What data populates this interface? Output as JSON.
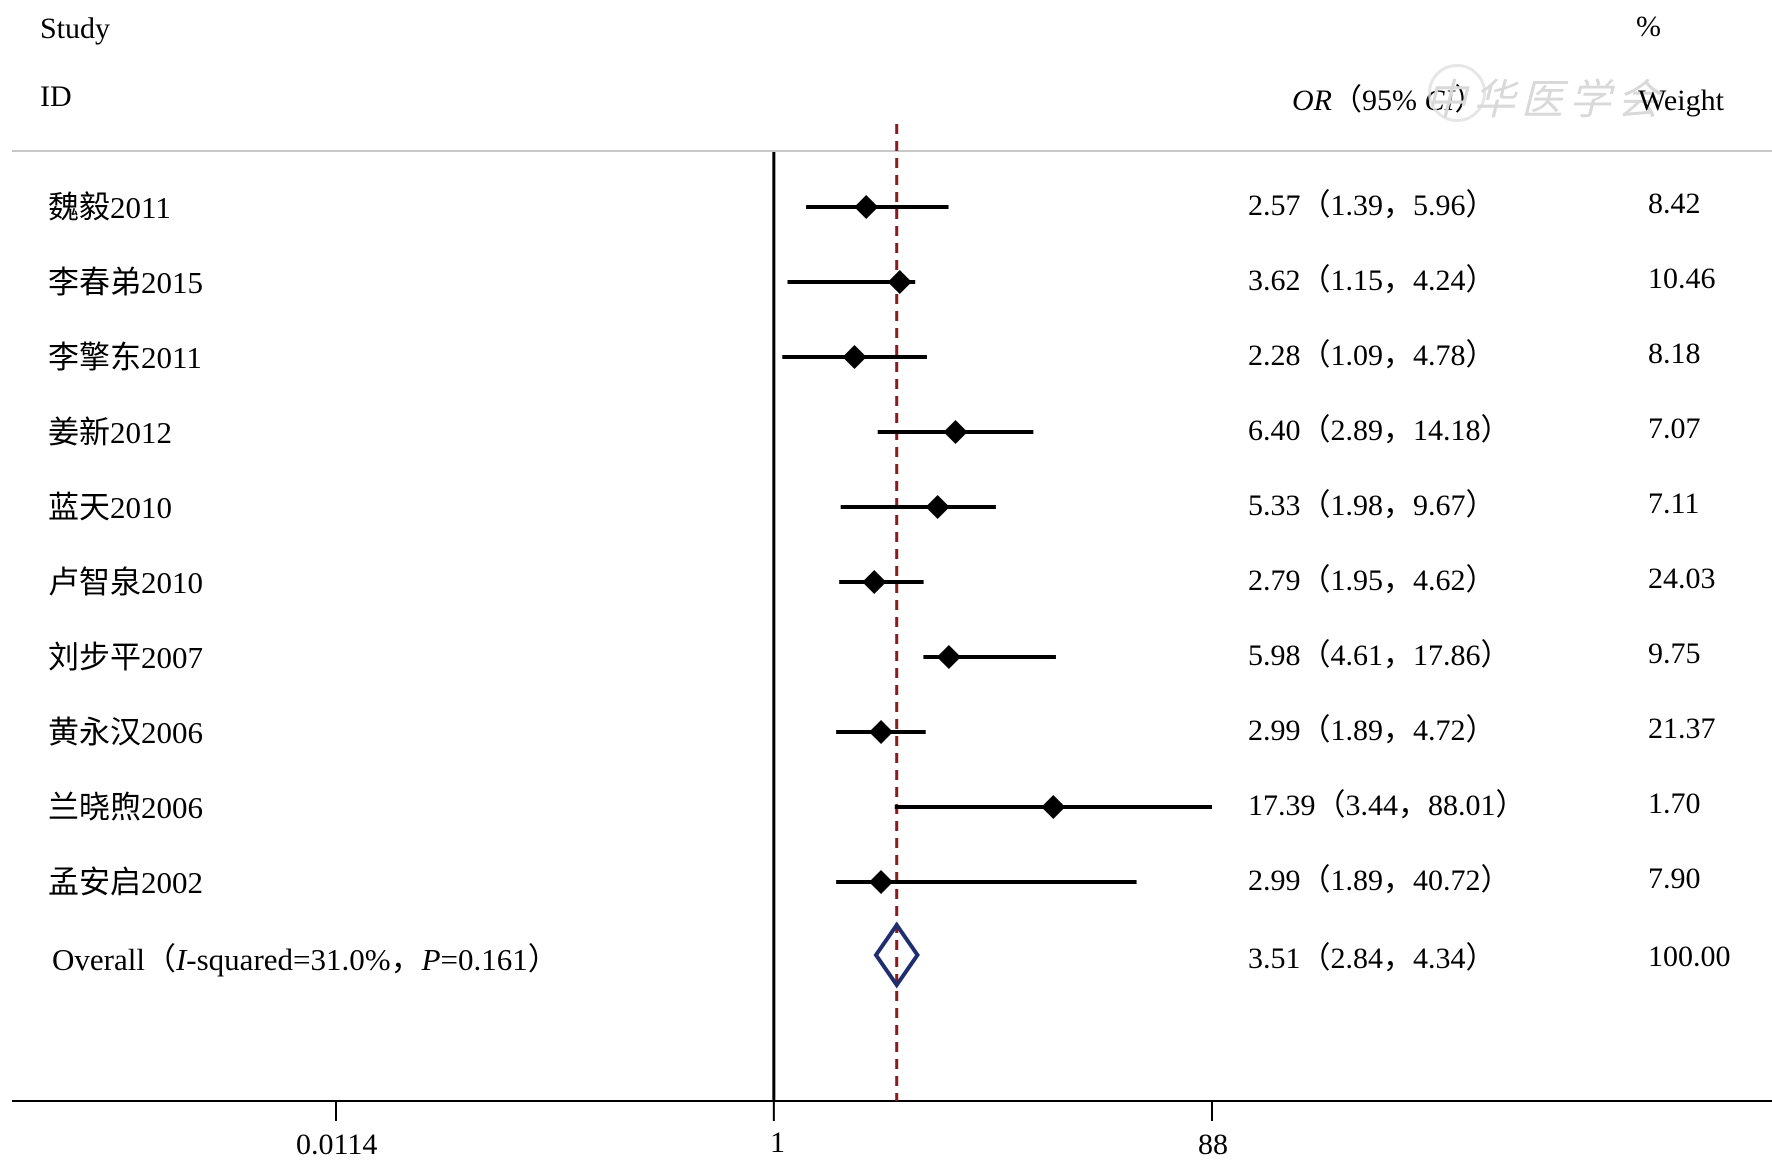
{
  "header": {
    "study_line1": "Study",
    "study_line2": "ID",
    "or_label": "OR",
    "or_ci_paren_open": "（95% ",
    "ci_label": "CI",
    "or_ci_paren_close": "）",
    "weight_pct": "%",
    "weight_label": "Weight",
    "watermark": "中华医学会"
  },
  "colors": {
    "axis": "#000000",
    "ci_line": "#000000",
    "marker": "#000000",
    "ref_line": "#8b1a1a",
    "overall_diamond": "#1f2e6e",
    "rule": "#c8c8c8"
  },
  "chart_data": {
    "type": "forest",
    "scale": "log",
    "xlim": [
      0.0114,
      88
    ],
    "null_value": 1,
    "pooled_reference": 3.51,
    "tick_labels": [
      "0.0114",
      "1",
      "88"
    ],
    "ticks": [
      0.0114,
      1,
      88
    ],
    "studies": [
      {
        "label": "魏毅2011",
        "or": 2.57,
        "lo": 1.39,
        "hi": 5.96,
        "ci_text": "2.57（1.39，5.96）",
        "weight": "8.42"
      },
      {
        "label": "李春弟2015",
        "or": 3.62,
        "lo": 1.15,
        "hi": 4.24,
        "ci_text": "3.62（1.15，4.24）",
        "weight": "10.46"
      },
      {
        "label": "李擎东2011",
        "or": 2.28,
        "lo": 1.09,
        "hi": 4.78,
        "ci_text": "2.28（1.09，4.78）",
        "weight": "8.18"
      },
      {
        "label": "姜新2012",
        "or": 6.4,
        "lo": 2.89,
        "hi": 14.18,
        "ci_text": "6.40（2.89，14.18）",
        "weight": "7.07"
      },
      {
        "label": "蓝天2010",
        "or": 5.33,
        "lo": 1.98,
        "hi": 9.67,
        "ci_text": "5.33（1.98，9.67）",
        "weight": "7.11"
      },
      {
        "label": "卢智泉2010",
        "or": 2.79,
        "lo": 1.95,
        "hi": 4.62,
        "ci_text": "2.79（1.95，4.62）",
        "weight": "24.03"
      },
      {
        "label": "刘步平2007",
        "or": 5.98,
        "lo": 4.61,
        "hi": 17.86,
        "ci_text": "5.98（4.61，17.86）",
        "weight": "9.75"
      },
      {
        "label": "黄永汉2006",
        "or": 2.99,
        "lo": 1.89,
        "hi": 4.72,
        "ci_text": "2.99（1.89，4.72）",
        "weight": "21.37"
      },
      {
        "label": "兰晓煦2006",
        "or": 17.39,
        "lo": 3.44,
        "hi": 88.01,
        "ci_text": "17.39（3.44，88.01）",
        "weight": "1.70"
      },
      {
        "label": "孟安启2002",
        "or": 2.99,
        "lo": 1.89,
        "hi": 40.72,
        "ci_text": "2.99（1.89，40.72）",
        "weight": "7.90"
      }
    ],
    "overall": {
      "label_prefix": "Overall（",
      "i_label": "I",
      "i_value": "-squared=31.0%，",
      "p_label": "P",
      "p_value": "=0.161）",
      "or": 3.51,
      "lo": 2.84,
      "hi": 4.34,
      "ci_text": "3.51（2.84，4.34）",
      "weight": "100.00"
    }
  }
}
